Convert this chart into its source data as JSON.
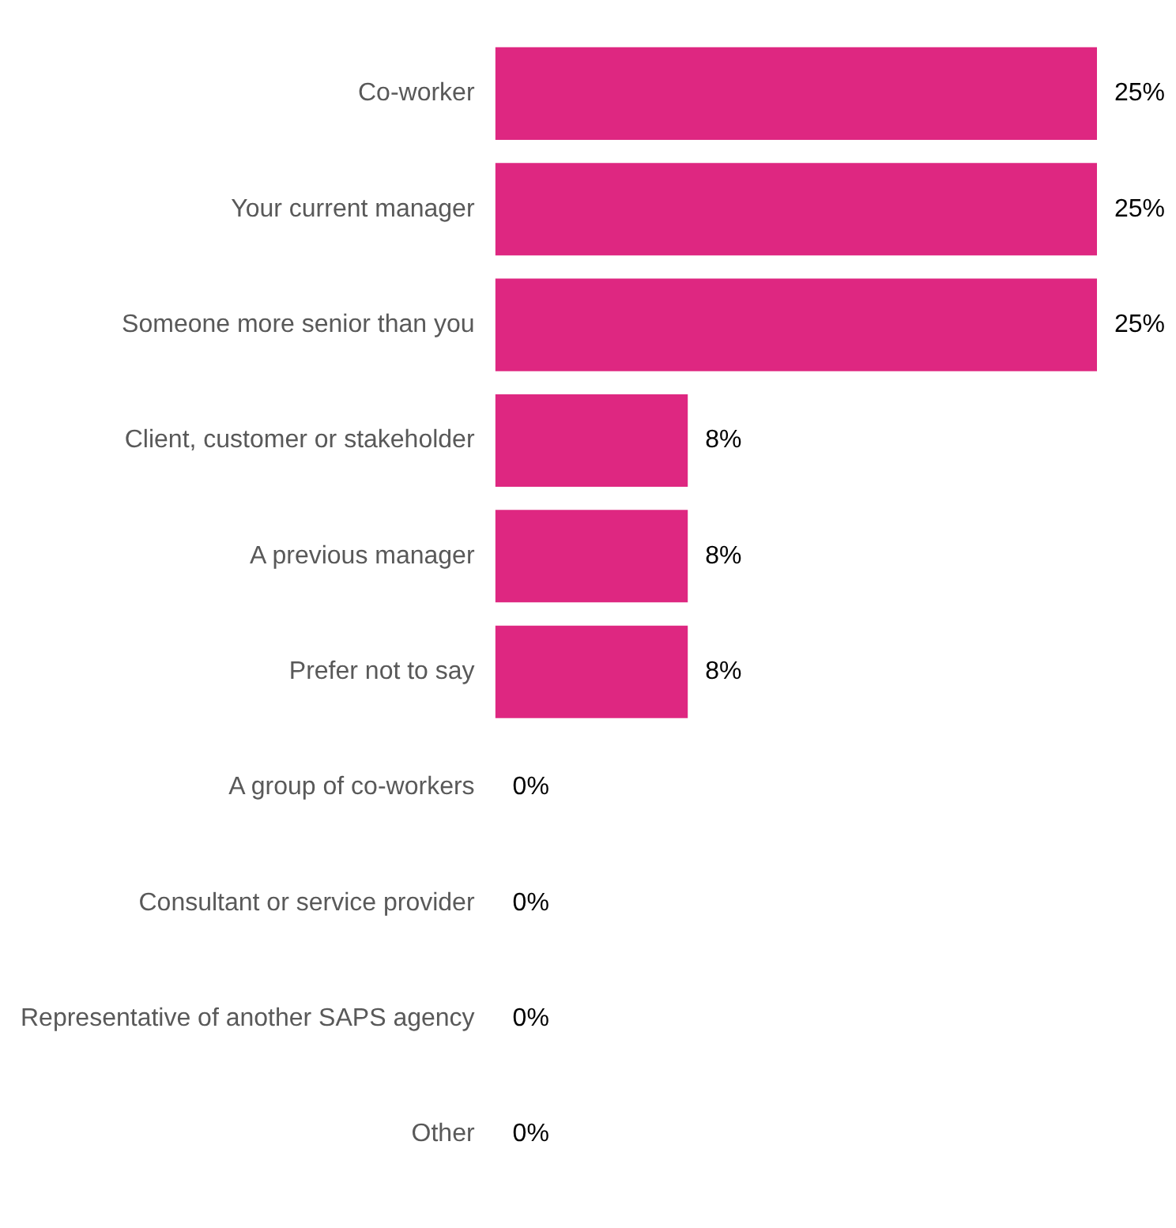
{
  "chart_data": {
    "type": "bar",
    "orientation": "horizontal",
    "categories": [
      "Co-worker",
      "Your current manager",
      "Someone more senior than you",
      "Client, customer or stakeholder",
      "A previous manager",
      "Prefer not to say",
      "A group of co-workers",
      "Consultant or service provider",
      "Representative of another SAPS agency",
      "Other"
    ],
    "values": [
      25,
      25,
      25,
      8,
      8,
      8,
      0,
      0,
      0,
      0
    ],
    "color": "#de2781",
    "value_labels": [
      "25%",
      "25%",
      "25%",
      "8%",
      "8%",
      "8%",
      "0%",
      "0%",
      "0%",
      "0%"
    ],
    "grid": false,
    "legend": false
  }
}
